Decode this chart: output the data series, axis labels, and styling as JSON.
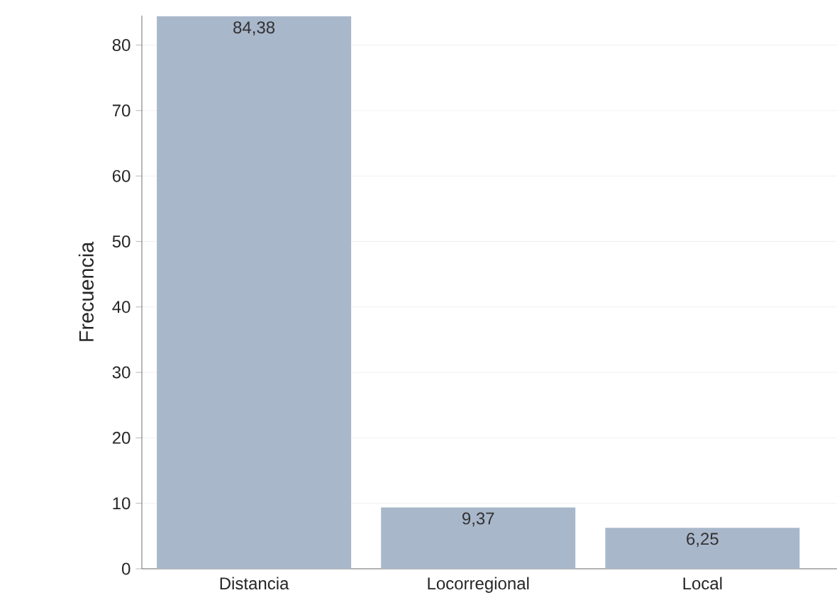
{
  "chart_data": {
    "type": "bar",
    "ylabel": "Frecuencia",
    "categories": [
      "Distancia",
      "Locorregional",
      "Local"
    ],
    "values": [
      84.38,
      9.37,
      6.25
    ],
    "value_labels": [
      "84,38",
      "9,37",
      "6,25"
    ],
    "color": "#a9b7cb",
    "ylim": [
      0,
      84.5
    ],
    "yticks": [
      0,
      10,
      20,
      30,
      40,
      50,
      60,
      70,
      80
    ],
    "grid": "y"
  }
}
